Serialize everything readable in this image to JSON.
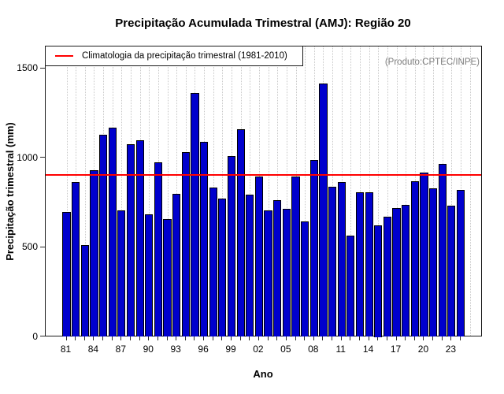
{
  "title": "Precipitação Acumulada Trimestral (AMJ): Região 20",
  "annotation": "(Produto:CPTEC/INPE)",
  "legend": {
    "label": "Climatologia da precipitação trimestral (1981-2010)"
  },
  "chart_data": {
    "type": "bar",
    "title": "Precipitação Acumulada Trimestral (AMJ): Região 20",
    "xlabel": "Ano",
    "ylabel": "Precipitação trimestral (mm)",
    "legend_label": "Climatologia da precipitação trimestral (1981-2010)",
    "annotation": "(Produto:CPTEC/INPE)",
    "years": [
      1981,
      1982,
      1983,
      1984,
      1985,
      1986,
      1987,
      1988,
      1989,
      1990,
      1991,
      1992,
      1993,
      1994,
      1995,
      1996,
      1997,
      1998,
      1999,
      2000,
      2001,
      2002,
      2003,
      2004,
      2005,
      2006,
      2007,
      2008,
      2009,
      2010,
      2011,
      2012,
      2013,
      2014,
      2015,
      2016,
      2017,
      2018,
      2019,
      2020,
      2021,
      2022,
      2023,
      2024
    ],
    "values": [
      700,
      865,
      515,
      930,
      1130,
      1170,
      705,
      1075,
      1100,
      685,
      975,
      660,
      800,
      1035,
      1365,
      1090,
      835,
      775,
      1010,
      1160,
      795,
      895,
      705,
      765,
      715,
      895,
      645,
      990,
      1415,
      840,
      865,
      565,
      810,
      810,
      625,
      670,
      720,
      740,
      870,
      920,
      830,
      965,
      735,
      820
    ],
    "climatology_mm": 905,
    "y_ticks": [
      0,
      500,
      1000,
      1500
    ],
    "x_tick_labels": [
      "81",
      "84",
      "87",
      "90",
      "93",
      "96",
      "99",
      "02",
      "05",
      "08",
      "11",
      "14",
      "17",
      "20",
      "23"
    ],
    "x_label_every": 3,
    "ylim": [
      0,
      1625
    ],
    "grid": "vertical-dotted",
    "legend_position": "top-left",
    "colors": {
      "bar_fill": "#0000CD",
      "bar_border": "#000000",
      "climatology_line": "#FF0000",
      "grid_line": "#C8C8C8",
      "annotation_text": "#7E7E7E"
    }
  }
}
